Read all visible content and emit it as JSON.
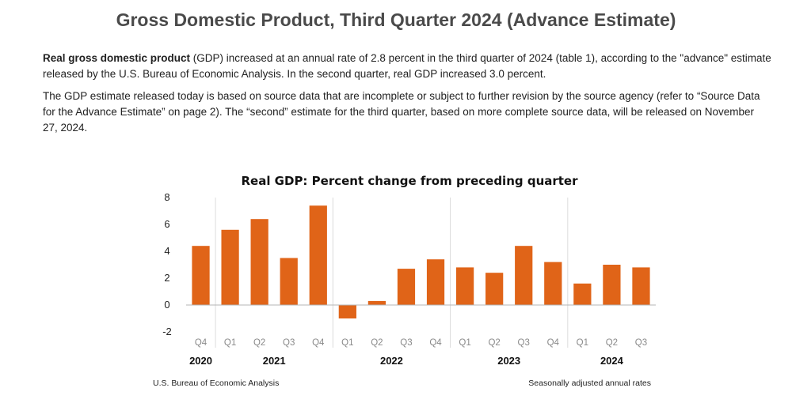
{
  "page": {
    "title": "Gross Domestic Product, Third Quarter 2024 (Advance Estimate)",
    "para1_bold": "Real gross domestic product",
    "para1_rest": " (GDP) increased at an annual rate of 2.8 percent in the third quarter of 2024 (table 1), according to the \"advance\" estimate released by the U.S. Bureau of Economic Analysis. In the second quarter, real GDP increased 3.0 percent.",
    "para2": "The GDP estimate released today is based on source data that are incomplete or subject to further revision by the source agency (refer to “Source Data for the Advance Estimate” on page 2). The “second” estimate for the third quarter, based on more complete source data, will be released on November 27, 2024."
  },
  "chart_data": {
    "type": "bar",
    "title": "Real GDP:  Percent change from preceding quarter",
    "categories": [
      "Q4",
      "Q1",
      "Q2",
      "Q3",
      "Q4",
      "Q1",
      "Q2",
      "Q3",
      "Q4",
      "Q1",
      "Q2",
      "Q3",
      "Q4",
      "Q1",
      "Q2",
      "Q3"
    ],
    "values": [
      4.4,
      5.6,
      6.4,
      3.5,
      7.4,
      -1.0,
      0.3,
      2.7,
      3.4,
      2.8,
      2.4,
      4.4,
      3.2,
      1.6,
      3.0,
      2.8
    ],
    "years": [
      {
        "label": "2020",
        "start": 0,
        "end": 0
      },
      {
        "label": "2021",
        "start": 1,
        "end": 4
      },
      {
        "label": "2022",
        "start": 5,
        "end": 8
      },
      {
        "label": "2023",
        "start": 9,
        "end": 12
      },
      {
        "label": "2024",
        "start": 13,
        "end": 15
      }
    ],
    "yticks": [
      -2,
      0,
      2,
      4,
      6,
      8
    ],
    "ylim": [
      -2,
      8
    ],
    "xlabel": "",
    "ylabel": "",
    "grid": false,
    "bar_color": "#e06418",
    "source": "U.S. Bureau of Economic Analysis",
    "note": "Seasonally adjusted annual rates"
  }
}
